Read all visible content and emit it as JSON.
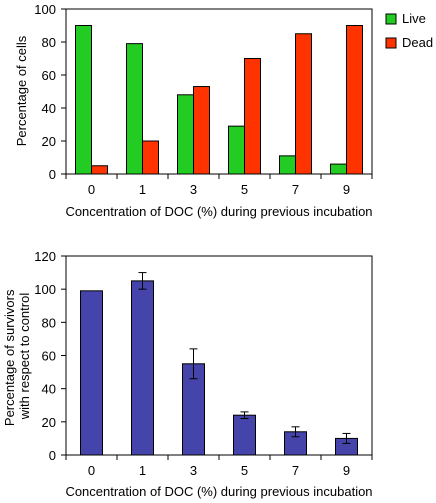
{
  "chart_data": [
    {
      "type": "bar",
      "categories": [
        "0",
        "1",
        "3",
        "5",
        "7",
        "9"
      ],
      "series": [
        {
          "name": "Live",
          "color": "#22cc22",
          "values": [
            90,
            79,
            48,
            29,
            11,
            6
          ]
        },
        {
          "name": "Dead",
          "color": "#ff3300",
          "values": [
            5,
            20,
            53,
            70,
            85,
            90
          ]
        }
      ],
      "xlabel": "Concentration of DOC (%) during previous incubation",
      "ylabel": "Percentage of cells",
      "ylim": [
        0,
        100
      ],
      "yticks": [
        0,
        20,
        40,
        60,
        80,
        100
      ],
      "legend": "right",
      "grid": false
    },
    {
      "type": "bar",
      "categories": [
        "0",
        "1",
        "3",
        "5",
        "7",
        "9"
      ],
      "series": [
        {
          "color": "#4444aa",
          "values": [
            99,
            105,
            55,
            24,
            14,
            10
          ],
          "errors": [
            0,
            5,
            9,
            2,
            3,
            3
          ]
        }
      ],
      "xlabel": "Concentration of DOC (%) during previous incubation",
      "ylabel_lines": [
        "Percentage of survivors",
        "with respect to control"
      ],
      "ylim": [
        0,
        120
      ],
      "yticks": [
        0,
        20,
        40,
        60,
        80,
        100,
        120
      ],
      "grid": false
    }
  ]
}
